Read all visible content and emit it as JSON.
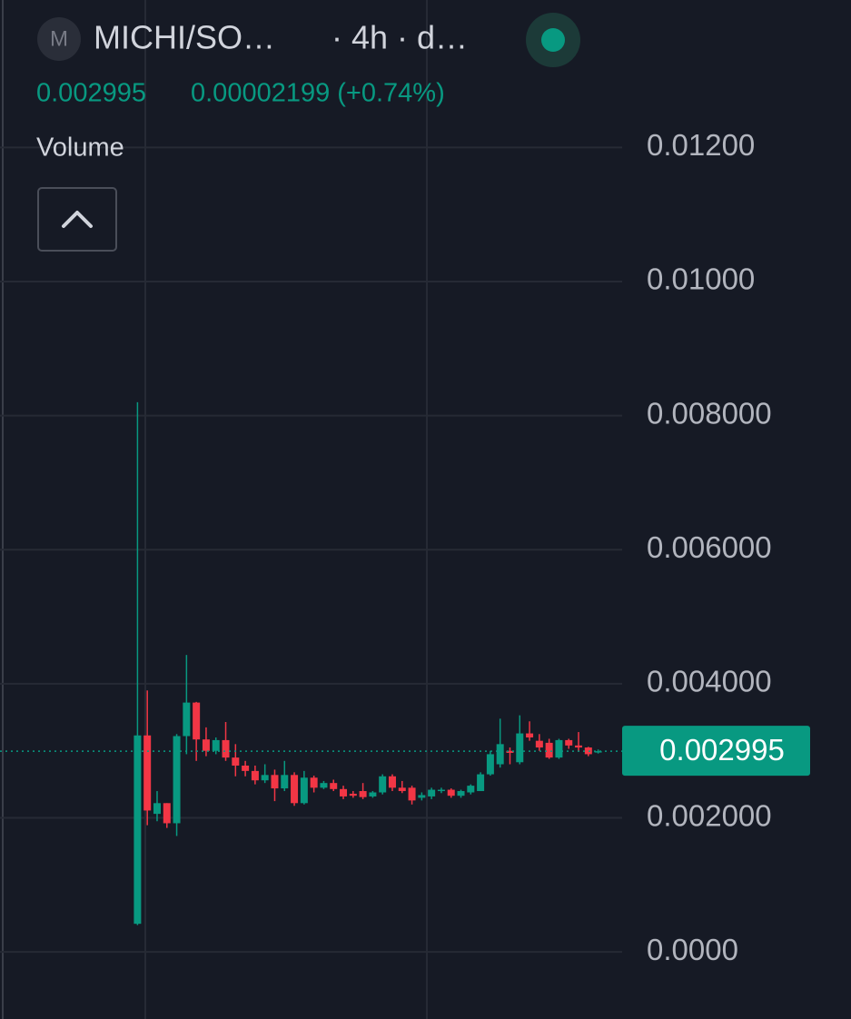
{
  "header": {
    "icon": "M",
    "symbol": "MICHI/SO…",
    "interval": "· 4h · d…",
    "change": "0.00002199 (+0.74%)",
    "volume_label": "Volume"
  },
  "chart_data": {
    "type": "candlestick",
    "open": [
      0.00042,
      0.00323,
      0.00206,
      0.00222,
      0.00192,
      0.00322,
      0.00372,
      0.00317,
      0.003,
      0.00316,
      0.0029,
      0.00278,
      0.0027,
      0.00256,
      0.00264,
      0.00244,
      0.00264,
      0.00222,
      0.0026,
      0.00245,
      0.00252,
      0.00243,
      0.00236,
      0.0024,
      0.00232,
      0.00238,
      0.00262,
      0.00245,
      0.00245,
      0.0023,
      0.00232,
      0.0024,
      0.00242,
      0.00233,
      0.00238,
      0.0024,
      0.00265,
      0.0028,
      0.003,
      0.00283,
      0.00326,
      0.00315,
      0.00312,
      0.0029,
      0.00316,
      0.00308,
      0.00305,
      0.00298
    ],
    "high": [
      0.0082,
      0.0039,
      0.0024,
      0.00222,
      0.00325,
      0.00443,
      0.00373,
      0.00335,
      0.0032,
      0.00343,
      0.0031,
      0.00285,
      0.00278,
      0.0028,
      0.00272,
      0.00285,
      0.00268,
      0.0027,
      0.00263,
      0.00255,
      0.00257,
      0.00248,
      0.0024,
      0.00252,
      0.0024,
      0.00265,
      0.00265,
      0.00255,
      0.00248,
      0.00238,
      0.00245,
      0.00245,
      0.00244,
      0.00242,
      0.0025,
      0.00268,
      0.003,
      0.00348,
      0.00305,
      0.00353,
      0.00344,
      0.00325,
      0.00318,
      0.00318,
      0.00318,
      0.00328,
      0.00306,
      0.00302
    ],
    "low": [
      0.0004,
      0.00189,
      0.00195,
      0.00185,
      0.00173,
      0.00295,
      0.00285,
      0.00292,
      0.00295,
      0.00285,
      0.00262,
      0.00262,
      0.0025,
      0.00252,
      0.00225,
      0.0024,
      0.00218,
      0.0022,
      0.00238,
      0.00243,
      0.0024,
      0.00228,
      0.0023,
      0.00228,
      0.0023,
      0.00235,
      0.0024,
      0.00237,
      0.0022,
      0.00226,
      0.00228,
      0.00237,
      0.0023,
      0.0023,
      0.00235,
      0.0024,
      0.00263,
      0.00275,
      0.0028,
      0.0028,
      0.00315,
      0.003,
      0.00288,
      0.00288,
      0.00303,
      0.003,
      0.00292,
      0.00296
    ],
    "close": [
      0.00323,
      0.00211,
      0.00222,
      0.00192,
      0.00322,
      0.00372,
      0.00317,
      0.003,
      0.00316,
      0.0029,
      0.00278,
      0.0027,
      0.00256,
      0.00264,
      0.00244,
      0.00264,
      0.00222,
      0.0026,
      0.00245,
      0.00252,
      0.00243,
      0.00232,
      0.00233,
      0.00231,
      0.00238,
      0.00262,
      0.00245,
      0.0024,
      0.00226,
      0.00234,
      0.00242,
      0.00242,
      0.00233,
      0.0024,
      0.00248,
      0.00265,
      0.00295,
      0.0031,
      0.00297,
      0.00326,
      0.0032,
      0.00305,
      0.0029,
      0.00316,
      0.00308,
      0.00305,
      0.00295,
      0.002995
    ],
    "up_color": "#089981",
    "down_color": "#f23645",
    "last_price": 0.002995,
    "ylim": [
      -0.001,
      0.0142
    ],
    "yticks": [
      {
        "value": 0.012,
        "label": "0.01200"
      },
      {
        "value": 0.01,
        "label": "0.01000"
      },
      {
        "value": 0.008,
        "label": "0.008000"
      },
      {
        "value": 0.006,
        "label": "0.006000"
      },
      {
        "value": 0.004,
        "label": "0.004000"
      },
      {
        "value": 0.002,
        "label": "0.002000"
      },
      {
        "value": 0,
        "label": "0.0000"
      }
    ],
    "grid": true
  }
}
